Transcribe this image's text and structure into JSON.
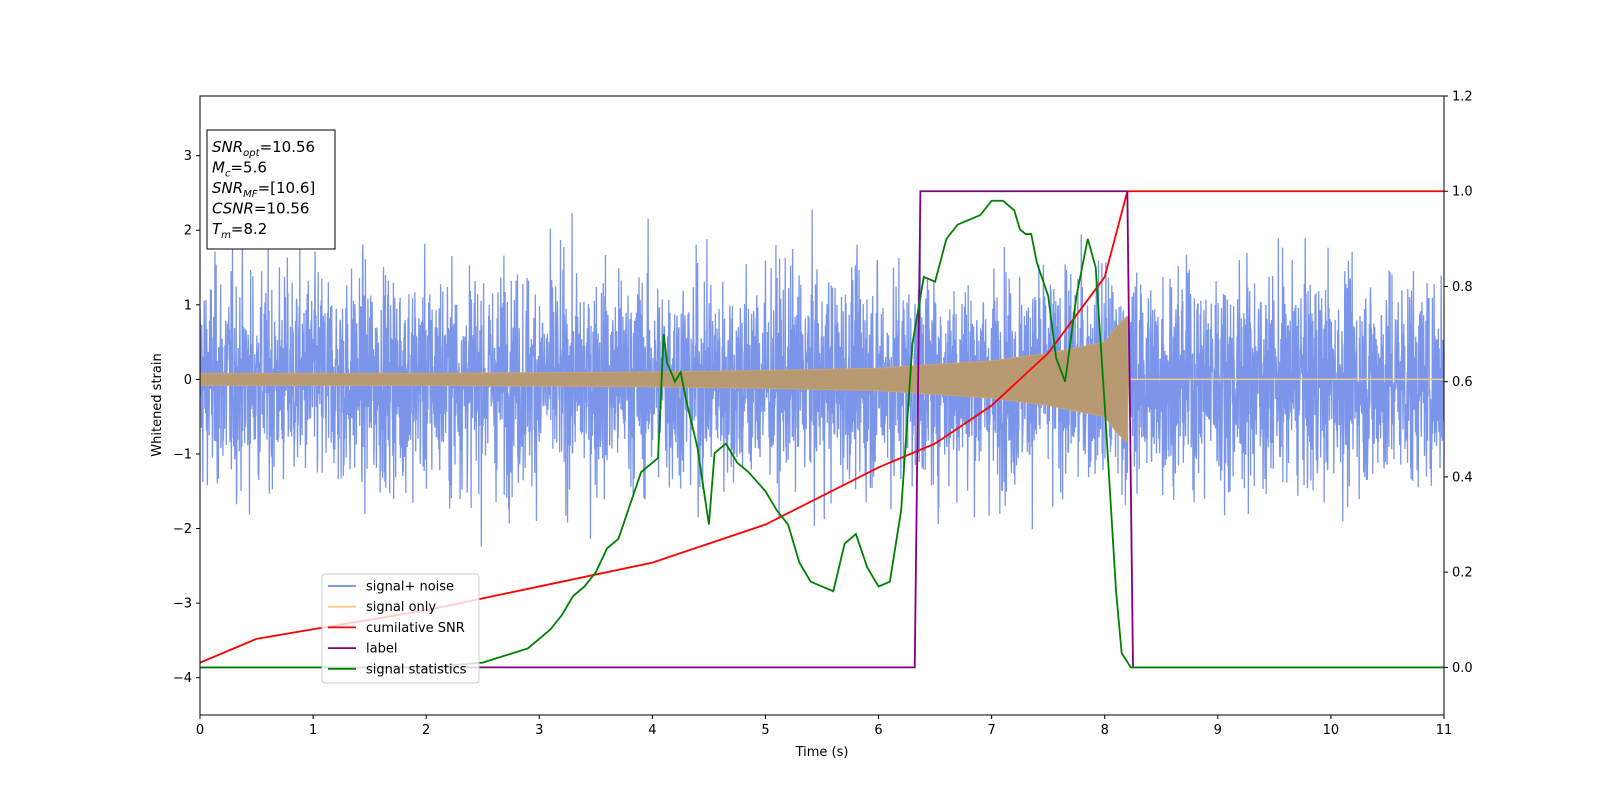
{
  "chart_data": {
    "type": "line",
    "xlabel": "Time (s)",
    "ylabel": "Whitened strain",
    "xlim": [
      0,
      11
    ],
    "ylim_left": [
      -4.5,
      3.8
    ],
    "ylim_right": [
      -0.1,
      1.2
    ],
    "x_ticks": [
      0,
      1,
      2,
      3,
      4,
      5,
      6,
      7,
      8,
      9,
      10,
      11
    ],
    "y_ticks_left": [
      -4,
      -3,
      -2,
      -1,
      0,
      1,
      2,
      3
    ],
    "y_ticks_right": [
      "0.0",
      "0.2",
      "0.4",
      "0.6",
      "0.8",
      "1.0",
      "1.2"
    ],
    "grid": false,
    "legend_position": "lower-left",
    "colors": {
      "signal_noise": "#6b8ae8",
      "signal_only": "#ffc98a",
      "cumulative_snr": "#ff0000",
      "label": "#800080",
      "signal_statistics": "#008000"
    },
    "annotation": {
      "lines": [
        {
          "base": "SNR",
          "sub": "opt",
          "rest": "=10.56"
        },
        {
          "base": "M",
          "sub": "c",
          "rest": "=5.6"
        },
        {
          "base": "SNR",
          "sub": "MF",
          "rest": "=[10.6]"
        },
        {
          "base": "CSNR",
          "sub": "",
          "rest": "=10.56"
        },
        {
          "base": "T",
          "sub": "m",
          "rest": "=8.2"
        }
      ]
    },
    "series": [
      {
        "name": "signal+ noise",
        "axis": "left",
        "description_values": {
          "noise_sigma": 1.0,
          "t_range": [
            0,
            11
          ]
        }
      },
      {
        "name": "signal only",
        "axis": "left",
        "envelope": {
          "t": [
            0,
            2,
            4,
            5,
            6,
            7,
            7.5,
            8,
            8.1,
            8.2,
            8.21
          ],
          "amp": [
            0.08,
            0.08,
            0.1,
            0.12,
            0.15,
            0.25,
            0.35,
            0.5,
            0.7,
            0.85,
            0.0
          ]
        }
      },
      {
        "name": "cumilative SNR",
        "axis": "right",
        "x": [
          0,
          0.5,
          1,
          2,
          3,
          4,
          5,
          6,
          6.5,
          7,
          7.5,
          8,
          8.2,
          11
        ],
        "y": [
          0.01,
          0.06,
          0.08,
          0.12,
          0.17,
          0.22,
          0.3,
          0.42,
          0.47,
          0.55,
          0.66,
          0.82,
          1.0,
          1.0
        ]
      },
      {
        "name": "label",
        "axis": "right",
        "x": [
          0,
          6.32,
          6.37,
          8.2,
          8.25,
          11
        ],
        "y": [
          0,
          0,
          1,
          1,
          0,
          0
        ]
      },
      {
        "name": "signal statistics",
        "axis": "right",
        "x": [
          0,
          2.0,
          2.5,
          2.9,
          3.0,
          3.1,
          3.2,
          3.3,
          3.4,
          3.5,
          3.6,
          3.7,
          3.8,
          3.9,
          4.0,
          4.05,
          4.1,
          4.13,
          4.2,
          4.25,
          4.3,
          4.4,
          4.5,
          4.55,
          4.65,
          4.75,
          4.85,
          5.0,
          5.1,
          5.2,
          5.3,
          5.4,
          5.5,
          5.6,
          5.7,
          5.8,
          5.9,
          6.0,
          6.1,
          6.2,
          6.3,
          6.4,
          6.5,
          6.6,
          6.7,
          6.8,
          6.9,
          7.0,
          7.1,
          7.2,
          7.25,
          7.3,
          7.35,
          7.4,
          7.5,
          7.57,
          7.65,
          7.75,
          7.85,
          7.92,
          8.0,
          8.1,
          8.15,
          8.23,
          8.3,
          11
        ],
        "y": [
          0.0,
          0.0,
          0.01,
          0.04,
          0.06,
          0.08,
          0.11,
          0.15,
          0.17,
          0.2,
          0.25,
          0.27,
          0.34,
          0.41,
          0.43,
          0.44,
          0.7,
          0.64,
          0.6,
          0.62,
          0.56,
          0.46,
          0.3,
          0.45,
          0.47,
          0.43,
          0.41,
          0.37,
          0.33,
          0.3,
          0.22,
          0.18,
          0.17,
          0.16,
          0.26,
          0.28,
          0.21,
          0.17,
          0.18,
          0.33,
          0.68,
          0.82,
          0.81,
          0.9,
          0.93,
          0.94,
          0.95,
          0.98,
          0.98,
          0.96,
          0.92,
          0.91,
          0.91,
          0.85,
          0.78,
          0.65,
          0.6,
          0.78,
          0.9,
          0.84,
          0.55,
          0.16,
          0.03,
          0.0,
          0.0,
          0.0
        ]
      }
    ]
  }
}
